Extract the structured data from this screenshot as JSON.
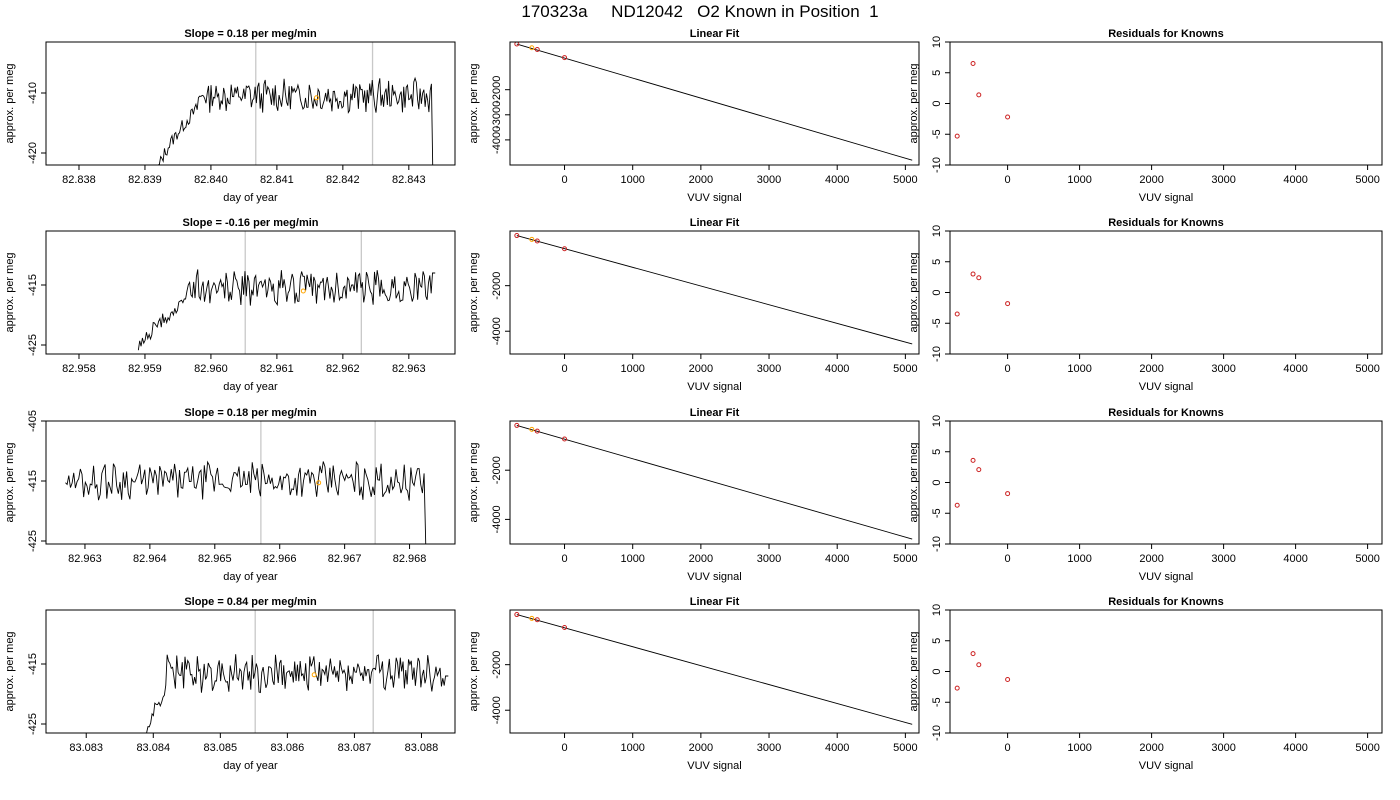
{
  "title": "170323a     ND12042   O2 Known in Position  1",
  "colors": {
    "trace": "#000000",
    "vline": "#c8c8c8",
    "point_red": "#cc2222",
    "point_orange": "#ffa500",
    "fit_line": "#000000"
  },
  "chart_data": [
    {
      "row": 1,
      "time_series": {
        "type": "line",
        "title": "Slope =  0.18  per meg/min",
        "xlabel": "day of year",
        "ylabel": "approx. per meg",
        "xlim": [
          82.8375,
          82.8437
        ],
        "ylim": [
          -422,
          -401.5
        ],
        "xticks": [
          "82.838",
          "82.839",
          "82.840",
          "82.841",
          "82.842",
          "82.843"
        ],
        "yticks": [
          "-410",
          "-420"
        ],
        "seg_start": 82.8392,
        "seg_end": 82.8434,
        "start_level": -423,
        "start_level_x": 82.8391,
        "rise_to": -412.5,
        "rise_end": 82.8398,
        "mean_level": -410.5,
        "noise": 1.5,
        "end_drop": -424,
        "vlines": [
          82.84068,
          82.84245
        ],
        "marker": {
          "x": 82.8416,
          "y": -410.8
        }
      },
      "linear_fit": {
        "type": "scatter",
        "title": "Linear Fit",
        "xlabel": "VUV signal",
        "ylabel": "approx. per meg",
        "xlim": [
          -800,
          5200
        ],
        "ylim": [
          -5000,
          -100
        ],
        "xticks": [
          "0",
          "1000",
          "2000",
          "3000",
          "4000",
          "5000"
        ],
        "yticks": [
          "-2000",
          "-3000",
          "-4000"
        ],
        "fit_line": {
          "x": [
            -700,
            5100
          ],
          "y": [
            -180,
            -4810
          ]
        },
        "points": [
          {
            "x": -700,
            "y": -180,
            "color": "red"
          },
          {
            "x": -480,
            "y": -330,
            "color": "orange"
          },
          {
            "x": -400,
            "y": -400,
            "color": "red"
          },
          {
            "x": 0,
            "y": -720,
            "color": "red"
          }
        ]
      },
      "residuals": {
        "type": "scatter",
        "title": "Residuals for Knowns",
        "xlabel": "VUV signal",
        "ylabel": "approx. per meg",
        "xlim": [
          -800,
          5200
        ],
        "ylim": [
          -10,
          10
        ],
        "xticks": [
          "0",
          "1000",
          "2000",
          "3000",
          "4000",
          "5000"
        ],
        "yticks": [
          "10",
          "5",
          "0",
          "-5",
          "-10"
        ],
        "points": [
          {
            "x": -700,
            "y": -5.3
          },
          {
            "x": -480,
            "y": 6.5
          },
          {
            "x": -400,
            "y": 1.4
          },
          {
            "x": 0,
            "y": -2.2
          }
        ]
      }
    },
    {
      "row": 2,
      "time_series": {
        "type": "line",
        "title": "Slope =  -0.16  per meg/min",
        "xlabel": "day of year",
        "ylabel": "approx. per meg",
        "xlim": [
          82.9575,
          82.9637
        ],
        "ylim": [
          -426.5,
          -406
        ],
        "xticks": [
          "82.958",
          "82.959",
          "82.960",
          "82.961",
          "82.962",
          "82.963"
        ],
        "yticks": [
          "-415",
          "-425"
        ],
        "seg_start": 82.9589,
        "seg_end": 82.9634,
        "start_level": -426,
        "start_level_x": 82.9589,
        "rise_to": -418,
        "rise_end": 82.9596,
        "mean_level": -415.5,
        "noise": 1.6,
        "end_drop": -413,
        "vlines": [
          82.96052,
          82.96228
        ],
        "marker": {
          "x": 82.9614,
          "y": -416
        }
      },
      "linear_fit": {
        "type": "scatter",
        "title": "Linear Fit",
        "xlabel": "VUV signal",
        "ylabel": "approx. per meg",
        "xlim": [
          -800,
          5200
        ],
        "ylim": [
          -5000,
          400
        ],
        "xticks": [
          "0",
          "1000",
          "2000",
          "3000",
          "4000",
          "5000"
        ],
        "yticks": [
          "-2000",
          "-4000"
        ],
        "fit_line": {
          "x": [
            -700,
            5100
          ],
          "y": [
            200,
            -4560
          ]
        },
        "points": [
          {
            "x": -700,
            "y": 200,
            "color": "red"
          },
          {
            "x": -480,
            "y": 30,
            "color": "orange"
          },
          {
            "x": -400,
            "y": -40,
            "color": "red"
          },
          {
            "x": 0,
            "y": -380,
            "color": "red"
          }
        ]
      },
      "residuals": {
        "type": "scatter",
        "title": "Residuals for Knowns",
        "xlabel": "VUV signal",
        "ylabel": "approx. per meg",
        "xlim": [
          -800,
          5200
        ],
        "ylim": [
          -10,
          10
        ],
        "xticks": [
          "0",
          "1000",
          "2000",
          "3000",
          "4000",
          "5000"
        ],
        "yticks": [
          "10",
          "5",
          "0",
          "-5",
          "-10"
        ],
        "points": [
          {
            "x": -700,
            "y": -3.5
          },
          {
            "x": -480,
            "y": 3.0
          },
          {
            "x": -400,
            "y": 2.4
          },
          {
            "x": 0,
            "y": -1.8
          }
        ]
      }
    },
    {
      "row": 3,
      "time_series": {
        "type": "line",
        "title": "Slope =  0.18  per meg/min",
        "xlabel": "day of year",
        "ylabel": "approx. per meg",
        "xlim": [
          82.9624,
          82.9687
        ],
        "ylim": [
          -425.5,
          -405
        ],
        "xticks": [
          "82.963",
          "82.964",
          "82.965",
          "82.966",
          "82.967",
          "82.968"
        ],
        "yticks": [
          "-405",
          "-415",
          "-425"
        ],
        "seg_start": 82.9627,
        "seg_end": 82.9683,
        "start_level": -415,
        "start_level_x": 82.9627,
        "rise_to": -415,
        "rise_end": 82.9628,
        "mean_level": -415,
        "noise": 1.7,
        "end_drop": -426,
        "vlines": [
          82.96571,
          82.96747
        ],
        "marker": {
          "x": 82.9666,
          "y": -415.3
        }
      },
      "linear_fit": {
        "type": "scatter",
        "title": "Linear Fit",
        "xlabel": "VUV signal",
        "ylabel": "approx. per meg",
        "xlim": [
          -800,
          5200
        ],
        "ylim": [
          -5000,
          0
        ],
        "xticks": [
          "0",
          "1000",
          "2000",
          "3000",
          "4000",
          "5000"
        ],
        "yticks": [
          "-2000",
          "-4000"
        ],
        "fit_line": {
          "x": [
            -700,
            5100
          ],
          "y": [
            -180,
            -4800
          ]
        },
        "points": [
          {
            "x": -700,
            "y": -180,
            "color": "red"
          },
          {
            "x": -480,
            "y": -340,
            "color": "orange"
          },
          {
            "x": -400,
            "y": -410,
            "color": "red"
          },
          {
            "x": 0,
            "y": -730,
            "color": "red"
          }
        ]
      },
      "residuals": {
        "type": "scatter",
        "title": "Residuals for Knowns",
        "xlabel": "VUV signal",
        "ylabel": "approx. per meg",
        "xlim": [
          -800,
          5200
        ],
        "ylim": [
          -10,
          10
        ],
        "xticks": [
          "0",
          "1000",
          "2000",
          "3000",
          "4000",
          "5000"
        ],
        "yticks": [
          "10",
          "5",
          "0",
          "-5",
          "-10"
        ],
        "points": [
          {
            "x": -700,
            "y": -3.7
          },
          {
            "x": -480,
            "y": 3.6
          },
          {
            "x": -400,
            "y": 2.1
          },
          {
            "x": 0,
            "y": -1.8
          }
        ]
      }
    },
    {
      "row": 4,
      "time_series": {
        "type": "line",
        "title": "Slope =  0.84  per meg/min",
        "xlabel": "day of year",
        "ylabel": "approx. per meg",
        "xlim": [
          83.0824,
          83.0885
        ],
        "ylim": [
          -426.5,
          -406
        ],
        "xticks": [
          "83.083",
          "83.084",
          "83.085",
          "83.086",
          "83.087",
          "83.088"
        ],
        "yticks": [
          "-415",
          "-425"
        ],
        "seg_start": 83.0839,
        "seg_end": 83.0884,
        "start_level": -427,
        "start_level_x": 83.0839,
        "rise_to": -419,
        "rise_end": 83.0842,
        "mean_level": -416.5,
        "noise": 1.8,
        "end_drop": -417,
        "vlines": [
          83.08552,
          83.08728
        ],
        "marker": {
          "x": 83.0864,
          "y": -416.8
        }
      },
      "linear_fit": {
        "type": "scatter",
        "title": "Linear Fit",
        "xlabel": "VUV signal",
        "ylabel": "approx. per meg",
        "xlim": [
          -800,
          5200
        ],
        "ylim": [
          -5000,
          400
        ],
        "xticks": [
          "0",
          "1000",
          "2000",
          "3000",
          "4000",
          "5000"
        ],
        "yticks": [
          "-2000",
          "-4000"
        ],
        "fit_line": {
          "x": [
            -700,
            5100
          ],
          "y": [
            200,
            -4620
          ]
        },
        "points": [
          {
            "x": -700,
            "y": 200,
            "color": "red"
          },
          {
            "x": -480,
            "y": 30,
            "color": "orange"
          },
          {
            "x": -400,
            "y": -30,
            "color": "red"
          },
          {
            "x": 0,
            "y": -370,
            "color": "red"
          }
        ]
      },
      "residuals": {
        "type": "scatter",
        "title": "Residuals for Knowns",
        "xlabel": "VUV signal",
        "ylabel": "approx. per meg",
        "xlim": [
          -800,
          5200
        ],
        "ylim": [
          -10,
          10
        ],
        "xticks": [
          "0",
          "1000",
          "2000",
          "3000",
          "4000",
          "5000"
        ],
        "yticks": [
          "10",
          "5",
          "0",
          "-5",
          "-10"
        ],
        "points": [
          {
            "x": -700,
            "y": -2.7
          },
          {
            "x": -480,
            "y": 2.9
          },
          {
            "x": -400,
            "y": 1.1
          },
          {
            "x": 0,
            "y": -1.3
          }
        ]
      }
    }
  ]
}
